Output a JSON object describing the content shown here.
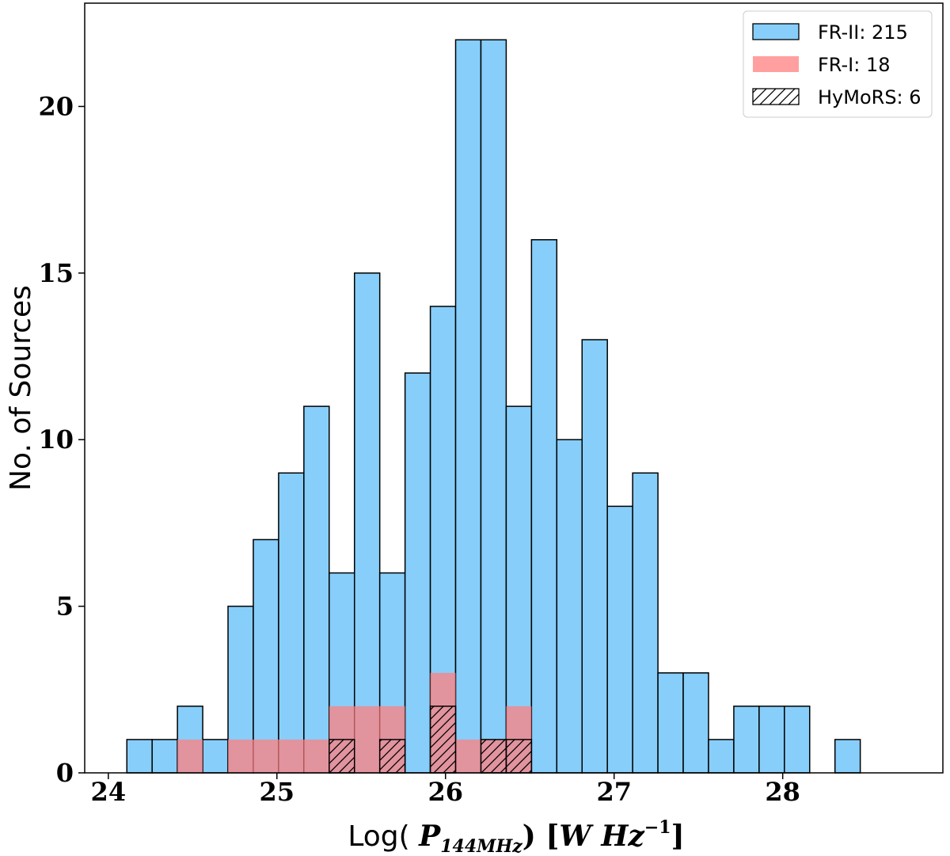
{
  "chart_data": {
    "type": "bar",
    "subtype": "histogram",
    "title": "",
    "xlabel": "Log( P144MHz) [W Hz-1]",
    "xlabel_parts": {
      "prefix": "Log( ",
      "symbol": "P",
      "subscript": "144MHz",
      "suffix": ") [",
      "unit": "W Hz",
      "unit_exponent": "−1",
      "close": "]"
    },
    "ylabel": "No. of Sources",
    "xlim": [
      23.86,
      28.95
    ],
    "ylim": [
      0,
      23.1
    ],
    "xticks": [
      24,
      25,
      26,
      27,
      28
    ],
    "yticks": [
      0,
      5,
      10,
      15,
      20
    ],
    "bin_width": 0.15,
    "legend_position": "top-right",
    "series": [
      {
        "name": "FR-II",
        "legend_label": "FR-II: 215",
        "color": "#87cefa",
        "bins": [
          {
            "x0": 24.11,
            "count": 1
          },
          {
            "x0": 24.26,
            "count": 1
          },
          {
            "x0": 24.41,
            "count": 2
          },
          {
            "x0": 24.56,
            "count": 1
          },
          {
            "x0": 24.71,
            "count": 5
          },
          {
            "x0": 24.86,
            "count": 7
          },
          {
            "x0": 25.01,
            "count": 9
          },
          {
            "x0": 25.16,
            "count": 11
          },
          {
            "x0": 25.31,
            "count": 6
          },
          {
            "x0": 25.46,
            "count": 15
          },
          {
            "x0": 25.61,
            "count": 6
          },
          {
            "x0": 25.76,
            "count": 12
          },
          {
            "x0": 25.91,
            "count": 14
          },
          {
            "x0": 26.06,
            "count": 22
          },
          {
            "x0": 26.21,
            "count": 22
          },
          {
            "x0": 26.36,
            "count": 11
          },
          {
            "x0": 26.51,
            "count": 16
          },
          {
            "x0": 26.66,
            "count": 10
          },
          {
            "x0": 26.81,
            "count": 13
          },
          {
            "x0": 26.96,
            "count": 8
          },
          {
            "x0": 27.11,
            "count": 9
          },
          {
            "x0": 27.26,
            "count": 3
          },
          {
            "x0": 27.41,
            "count": 3
          },
          {
            "x0": 27.56,
            "count": 1
          },
          {
            "x0": 27.71,
            "count": 2
          },
          {
            "x0": 27.86,
            "count": 2
          },
          {
            "x0": 28.01,
            "count": 2
          },
          {
            "x0": 28.31,
            "count": 1
          }
        ]
      },
      {
        "name": "FR-I",
        "legend_label": "FR-I: 18",
        "color": "#ff7f7f",
        "alpha": 0.75,
        "bins": [
          {
            "x0": 24.41,
            "count": 1
          },
          {
            "x0": 24.71,
            "count": 1
          },
          {
            "x0": 24.86,
            "count": 1
          },
          {
            "x0": 25.01,
            "count": 1
          },
          {
            "x0": 25.16,
            "count": 1
          },
          {
            "x0": 25.31,
            "count": 2
          },
          {
            "x0": 25.46,
            "count": 2
          },
          {
            "x0": 25.61,
            "count": 2
          },
          {
            "x0": 25.91,
            "count": 3
          },
          {
            "x0": 26.06,
            "count": 1
          },
          {
            "x0": 26.21,
            "count": 1
          },
          {
            "x0": 26.36,
            "count": 2
          }
        ]
      },
      {
        "name": "HyMoRS",
        "legend_label": "HyMoRS: 6",
        "pattern": "hatch",
        "bins": [
          {
            "x0": 25.31,
            "count": 1
          },
          {
            "x0": 25.61,
            "count": 1
          },
          {
            "x0": 25.91,
            "count": 2
          },
          {
            "x0": 26.21,
            "count": 1
          },
          {
            "x0": 26.36,
            "count": 1
          }
        ]
      }
    ]
  }
}
